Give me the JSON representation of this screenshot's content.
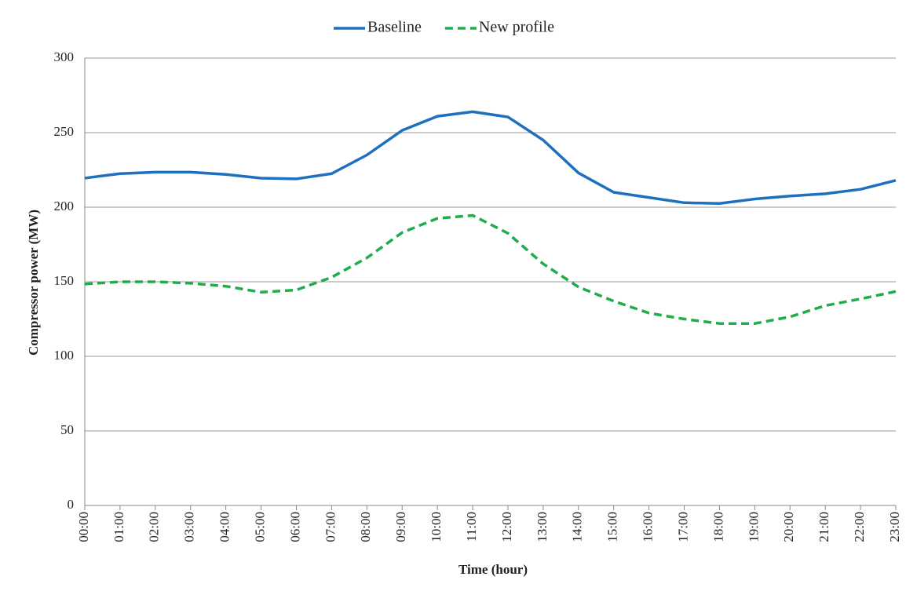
{
  "chart_data": {
    "type": "line",
    "x_label": "Time (hour)",
    "y_label": "Compressor power  (MW)",
    "categories": [
      "00:00",
      "01:00",
      "02:00",
      "03:00",
      "04:00",
      "05:00",
      "06:00",
      "07:00",
      "08:00",
      "09:00",
      "10:00",
      "11:00",
      "12:00",
      "13:00",
      "14:00",
      "15:00",
      "16:00",
      "17:00",
      "18:00",
      "19:00",
      "20:00",
      "21:00",
      "22:00",
      "23:00"
    ],
    "series": [
      {
        "name": "Baseline",
        "color": "#1f6fbf",
        "dashed": false,
        "values": [
          219.5,
          222.5,
          223.5,
          223.5,
          222,
          219.5,
          219,
          222.5,
          235,
          251.5,
          261,
          264,
          260.5,
          245,
          223,
          210,
          206.5,
          203,
          202.5,
          205.5,
          207.5,
          209,
          212,
          218
        ]
      },
      {
        "name": "New profile",
        "color": "#1fad4b",
        "dashed": true,
        "values": [
          148.5,
          150,
          150,
          149,
          147,
          143,
          144.5,
          153,
          166,
          183,
          192.5,
          194.5,
          182.5,
          162,
          146.5,
          137,
          129,
          125,
          122,
          122,
          126.5,
          134,
          138.5,
          143.5
        ]
      }
    ],
    "ylim": [
      0,
      300
    ],
    "yticks": [
      0,
      50,
      100,
      150,
      200,
      250,
      300
    ],
    "grid": true,
    "legend": "top"
  }
}
